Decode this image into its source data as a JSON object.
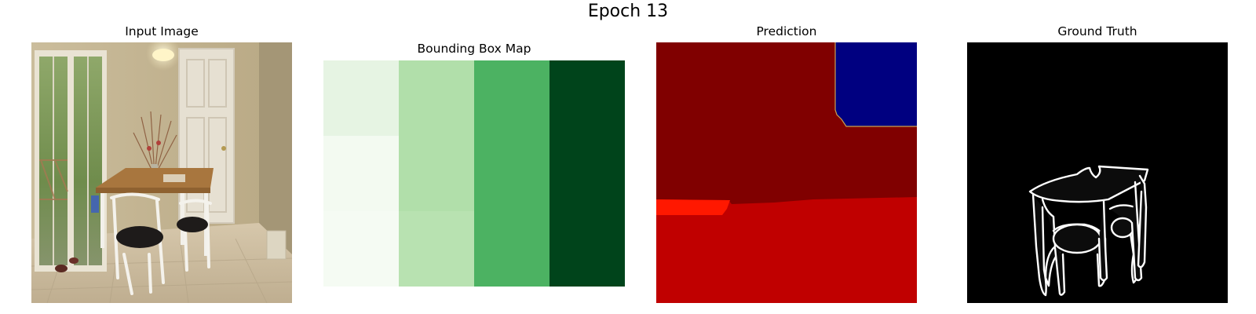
{
  "figure": {
    "title": "Epoch 13"
  },
  "panels": {
    "input": {
      "title": "Input Image"
    },
    "bbox": {
      "title": "Bounding Box Map",
      "grid": [
        [
          "#e6f4e3",
          "#b1dfaa",
          "#4cb262",
          "#00441b"
        ],
        [
          "#f3faf1",
          "#b1dfaa",
          "#4cb262",
          "#00441b"
        ],
        [
          "#f5fbf3",
          "#b8e2b1",
          "#4cb262",
          "#00441b"
        ]
      ]
    },
    "prediction": {
      "title": "Prediction",
      "colors": {
        "dark_red": "#800000",
        "red": "#c00000",
        "bright_red": "#ff1800",
        "navy": "#000080"
      }
    },
    "ground_truth": {
      "title": "Ground Truth",
      "colors": {
        "background": "#000000",
        "edge": "#ffffff"
      }
    }
  }
}
